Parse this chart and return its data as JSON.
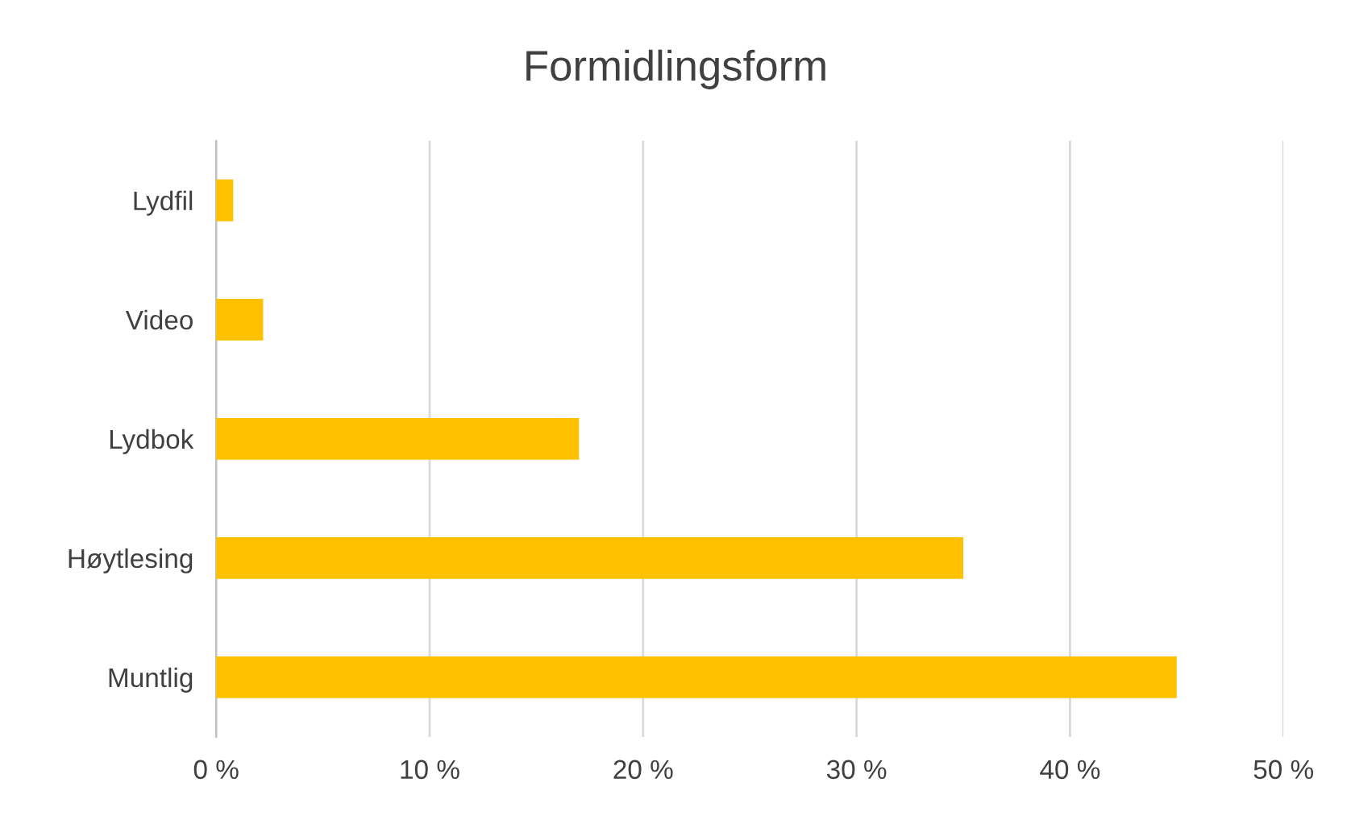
{
  "chart_data": {
    "type": "bar",
    "orientation": "horizontal",
    "title": "Formidlingsform",
    "categories": [
      "Lydfil",
      "Video",
      "Lydbok",
      "Høytlesing",
      "Muntlig"
    ],
    "values": [
      0.8,
      2.2,
      17,
      35,
      45
    ],
    "color": "#ffc000",
    "xlim": [
      0,
      50
    ],
    "xticks": [
      {
        "value": 0,
        "label": "0 %"
      },
      {
        "value": 10,
        "label": "10 %"
      },
      {
        "value": 20,
        "label": "20 %"
      },
      {
        "value": 30,
        "label": "30 %"
      },
      {
        "value": 40,
        "label": "40 %"
      },
      {
        "value": 50,
        "label": "50 %"
      }
    ],
    "grid": "x",
    "legend": false
  }
}
